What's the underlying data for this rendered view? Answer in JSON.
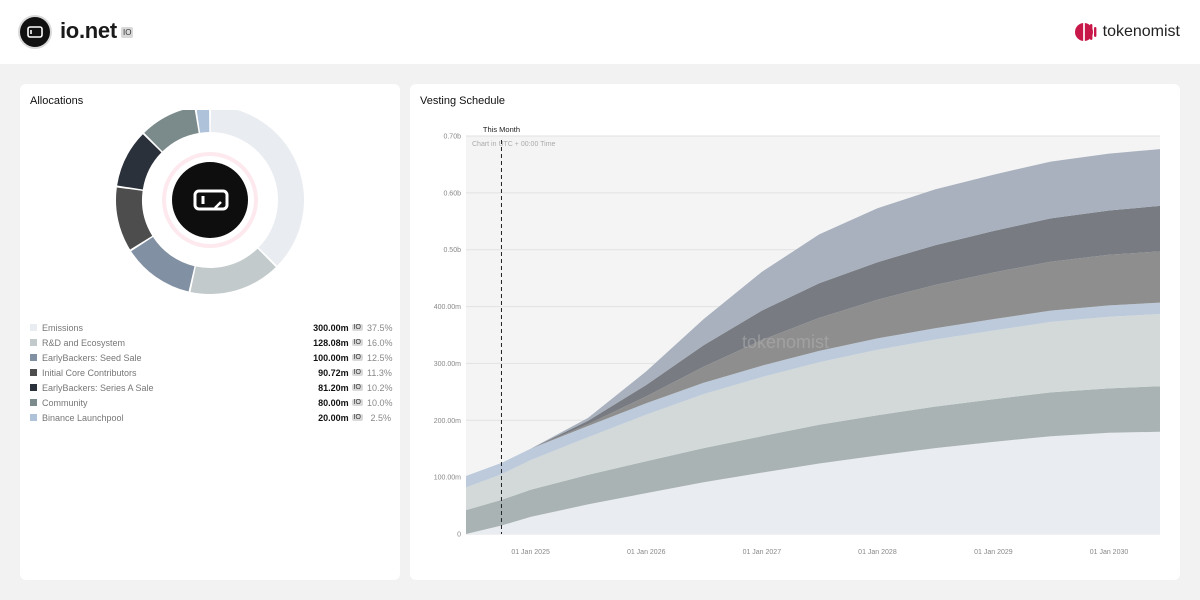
{
  "header": {
    "project_name": "io.net",
    "ticker": "IO",
    "provider": "tokenomist"
  },
  "allocations": {
    "title": "Allocations",
    "items": [
      {
        "label": "Emissions",
        "value": "300.00m",
        "unit": "IO",
        "pct": "37.5%",
        "color": "#e9ecf0",
        "share": 37.5
      },
      {
        "label": "R&D and Ecosystem",
        "value": "128.08m",
        "unit": "IO",
        "pct": "16.0%",
        "color": "#c3cacb",
        "share": 16.0
      },
      {
        "label": "EarlyBackers: Seed Sale",
        "value": "100.00m",
        "unit": "IO",
        "pct": "12.5%",
        "color": "#8190a3",
        "share": 12.5
      },
      {
        "label": "Initial Core Contributors",
        "value": "90.72m",
        "unit": "IO",
        "pct": "11.3%",
        "color": "#4d4d4d",
        "share": 11.3
      },
      {
        "label": "EarlyBackers: Series A Sale",
        "value": "81.20m",
        "unit": "IO",
        "pct": "10.2%",
        "color": "#2b313a",
        "share": 10.2
      },
      {
        "label": "Community",
        "value": "80.00m",
        "unit": "IO",
        "pct": "10.0%",
        "color": "#7b8a8a",
        "share": 10.0
      },
      {
        "label": "Binance Launchpool",
        "value": "20.00m",
        "unit": "IO",
        "pct": "2.5%",
        "color": "#aec2da",
        "share": 2.5
      }
    ]
  },
  "chart_data": {
    "type": "area",
    "stacked": true,
    "title": "Vesting Schedule",
    "note": "Chart in UTC + 00:00 Time",
    "marker_label": "This Month",
    "watermark": "tokenomist",
    "y_ticks": [
      "0",
      "100.00m",
      "200.00m",
      "300.00m",
      "400.00m",
      "0.50b",
      "0.60b",
      "0.70b"
    ],
    "x_ticks": [
      "01 Jan 2025",
      "01 Jan 2026",
      "01 Jan 2027",
      "01 Jan 2028",
      "01 Jan 2029",
      "01 Jan 2030"
    ],
    "ylim": [
      0,
      700000000
    ],
    "x_range": [
      "2024-06-11",
      "2030-06-11"
    ],
    "marker_x": "2024-10-01",
    "grid": true,
    "series": [
      {
        "name": "Emissions",
        "color": "#e9ecf0",
        "x": [
          "2024-06-11",
          "2024-10-01",
          "2025-01-01",
          "2025-07-01",
          "2026-01-01",
          "2026-07-01",
          "2027-01-01",
          "2027-07-01",
          "2028-01-01",
          "2028-07-01",
          "2029-01-01",
          "2029-07-01",
          "2030-01-01",
          "2030-06-11"
        ],
        "values": [
          0,
          15000000,
          30000000,
          52000000,
          72000000,
          91000000,
          108000000,
          124000000,
          138000000,
          151000000,
          162000000,
          172000000,
          178000000,
          180000000
        ]
      },
      {
        "name": "Community",
        "color": "#a9b3b3",
        "x": [
          "2024-06-11",
          "2024-10-01",
          "2025-01-01",
          "2025-07-01",
          "2026-01-01",
          "2026-07-01",
          "2027-01-01",
          "2027-07-01",
          "2028-01-01",
          "2028-07-01",
          "2029-01-01",
          "2029-07-01",
          "2030-01-01",
          "2030-06-11"
        ],
        "values": [
          42000000,
          45000000,
          48000000,
          52000000,
          56000000,
          60000000,
          64000000,
          68000000,
          71000000,
          73000000,
          75000000,
          77000000,
          78000000,
          80000000
        ]
      },
      {
        "name": "R&D and Ecosystem",
        "color": "#d3d9d8",
        "x": [
          "2024-06-11",
          "2024-10-01",
          "2025-01-01",
          "2025-07-01",
          "2026-01-01",
          "2026-07-01",
          "2027-01-01",
          "2027-07-01",
          "2028-01-01",
          "2028-07-01",
          "2029-01-01",
          "2029-07-01",
          "2030-01-01",
          "2030-06-11"
        ],
        "values": [
          40000000,
          45000000,
          52000000,
          66000000,
          82000000,
          95000000,
          104000000,
          110000000,
          115000000,
          118000000,
          121000000,
          124000000,
          126000000,
          127000000
        ]
      },
      {
        "name": "Binance Launchpool",
        "color": "#bccadb",
        "x": [
          "2024-06-11",
          "2024-10-01",
          "2025-01-01",
          "2025-07-01",
          "2026-01-01",
          "2026-07-01",
          "2027-01-01",
          "2027-07-01",
          "2028-01-01",
          "2028-07-01",
          "2029-01-01",
          "2029-07-01",
          "2030-01-01",
          "2030-06-11"
        ],
        "values": [
          20000000,
          20000000,
          20000000,
          20000000,
          20000000,
          20000000,
          20000000,
          20000000,
          20000000,
          20000000,
          20000000,
          20000000,
          20000000,
          20000000
        ]
      },
      {
        "name": "Initial Core Contributors",
        "color": "#8e8e8e",
        "x": [
          "2024-06-11",
          "2024-10-01",
          "2025-01-01",
          "2025-07-01",
          "2026-01-01",
          "2026-07-01",
          "2027-01-01",
          "2027-07-01",
          "2028-01-01",
          "2028-07-01",
          "2029-01-01",
          "2029-07-01",
          "2030-01-01",
          "2030-06-11"
        ],
        "values": [
          0,
          0,
          0,
          3000000,
          12000000,
          28000000,
          45000000,
          58000000,
          68000000,
          76000000,
          82000000,
          86000000,
          89000000,
          90000000
        ]
      },
      {
        "name": "EarlyBackers: Series A Sale",
        "color": "#787c82",
        "x": [
          "2024-06-11",
          "2024-10-01",
          "2025-01-01",
          "2025-07-01",
          "2026-01-01",
          "2026-07-01",
          "2027-01-01",
          "2027-07-01",
          "2028-01-01",
          "2028-07-01",
          "2029-01-01",
          "2029-07-01",
          "2030-01-01",
          "2030-06-11"
        ],
        "values": [
          0,
          0,
          0,
          6000000,
          20000000,
          38000000,
          52000000,
          61000000,
          66000000,
          70000000,
          73000000,
          76000000,
          78000000,
          80000000
        ]
      },
      {
        "name": "EarlyBackers: Seed Sale",
        "color": "#a8b1bd",
        "x": [
          "2024-06-11",
          "2024-10-01",
          "2025-01-01",
          "2025-07-01",
          "2026-01-01",
          "2026-07-01",
          "2027-01-01",
          "2027-07-01",
          "2028-01-01",
          "2028-07-01",
          "2029-01-01",
          "2029-07-01",
          "2030-01-01",
          "2030-06-11"
        ],
        "values": [
          0,
          0,
          0,
          5000000,
          24000000,
          46000000,
          68000000,
          86000000,
          95000000,
          98000000,
          99000000,
          100000000,
          100000000,
          100000000
        ]
      }
    ]
  }
}
